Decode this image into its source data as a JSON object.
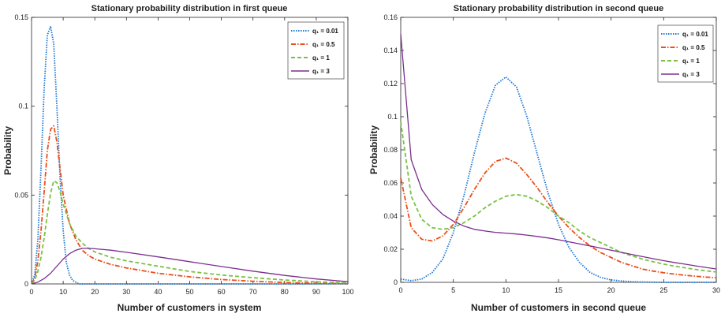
{
  "colors": {
    "s1": "#1f77d4",
    "s2": "#e8501c",
    "s3": "#7ac143",
    "s4": "#7b2e8e",
    "axis": "#262626",
    "background": "#ffffff"
  },
  "chart_data": [
    {
      "type": "line",
      "title": "Stationary probability distribution in first queue",
      "xlabel": "Number of customers in system",
      "ylabel": "Probability",
      "xlim": [
        0,
        100
      ],
      "ylim": [
        0,
        0.15
      ],
      "xticks": [
        0,
        10,
        20,
        30,
        40,
        50,
        60,
        70,
        80,
        90,
        100
      ],
      "yticks": [
        0,
        0.05,
        0.1,
        0.15
      ],
      "ytick_labels": [
        "0",
        "0.05",
        "0.1",
        "0.15"
      ],
      "grid": false,
      "legend_position": "top-right",
      "legend_labels": {
        "series_1": "q₁ = 0.01",
        "series_2": "q₁ = 0.5",
        "series_3": "q₁ = 1",
        "series_4": "q₁ = 3"
      },
      "series": [
        {
          "name": "q1 = 0.01",
          "color": "#1f77d4",
          "dash": "dotted",
          "x": [
            0,
            1,
            2,
            3,
            4,
            5,
            6,
            7,
            8,
            9,
            10,
            11,
            12,
            13,
            14,
            15,
            20,
            100
          ],
          "y": [
            0,
            0.005,
            0.025,
            0.065,
            0.11,
            0.14,
            0.145,
            0.135,
            0.1,
            0.06,
            0.03,
            0.012,
            0.005,
            0.002,
            0.001,
            0,
            0,
            0
          ]
        },
        {
          "name": "q1 = 0.5",
          "color": "#e8501c",
          "dash": "dashdot",
          "x": [
            0,
            1,
            2,
            3,
            4,
            5,
            6,
            7,
            8,
            9,
            10,
            12,
            14,
            16,
            18,
            20,
            25,
            30,
            40,
            50,
            60,
            70,
            80,
            90,
            100
          ],
          "y": [
            0,
            0.003,
            0.013,
            0.03,
            0.052,
            0.075,
            0.087,
            0.089,
            0.08,
            0.065,
            0.05,
            0.034,
            0.025,
            0.019,
            0.016,
            0.014,
            0.011,
            0.009,
            0.006,
            0.004,
            0.0025,
            0.0015,
            0.0008,
            0.0004,
            0.0002
          ]
        },
        {
          "name": "q1 = 1",
          "color": "#7ac143",
          "dash": "dashed",
          "x": [
            0,
            1,
            2,
            3,
            4,
            5,
            6,
            7,
            8,
            9,
            10,
            12,
            14,
            16,
            18,
            20,
            25,
            30,
            40,
            50,
            60,
            70,
            80,
            90,
            100
          ],
          "y": [
            0,
            0.002,
            0.007,
            0.015,
            0.026,
            0.039,
            0.051,
            0.058,
            0.057,
            0.052,
            0.045,
            0.034,
            0.027,
            0.023,
            0.02,
            0.018,
            0.015,
            0.013,
            0.01,
            0.007,
            0.005,
            0.0035,
            0.0022,
            0.0012,
            0.0006
          ]
        },
        {
          "name": "q1 = 3",
          "color": "#7b2e8e",
          "dash": "solid",
          "x": [
            0,
            2,
            4,
            6,
            8,
            10,
            12,
            14,
            16,
            18,
            20,
            25,
            30,
            40,
            50,
            60,
            70,
            80,
            90,
            100
          ],
          "y": [
            0,
            0.001,
            0.003,
            0.006,
            0.01,
            0.014,
            0.017,
            0.019,
            0.02,
            0.02,
            0.0198,
            0.019,
            0.0178,
            0.0152,
            0.0125,
            0.0098,
            0.0072,
            0.0048,
            0.0028,
            0.0013
          ]
        }
      ]
    },
    {
      "type": "line",
      "title": "Stationary probability distribution in second queue",
      "xlabel": "Number of customers in second queue",
      "ylabel": "Probability",
      "xlim": [
        0,
        30
      ],
      "ylim": [
        0,
        0.16
      ],
      "xticks": [
        0,
        5,
        10,
        15,
        20,
        25,
        30
      ],
      "yticks": [
        0,
        0.02,
        0.04,
        0.06,
        0.08,
        0.1,
        0.12,
        0.14,
        0.16
      ],
      "ytick_labels": [
        "0",
        "0.02",
        "0.04",
        "0.06",
        "0.08",
        "0.1",
        "0.12",
        "0.14",
        "0.16"
      ],
      "grid": false,
      "legend_position": "top-right",
      "legend_labels": {
        "series_1": "q₁ = 0.01",
        "series_2": "q₁ = 0.5",
        "series_3": "q₁ = 1",
        "series_4": "q₁ = 3"
      },
      "series": [
        {
          "name": "q1 = 0.01",
          "color": "#1f77d4",
          "dash": "dotted",
          "x": [
            0,
            1,
            2,
            3,
            4,
            5,
            6,
            7,
            8,
            9,
            10,
            11,
            12,
            13,
            14,
            15,
            16,
            17,
            18,
            19,
            20,
            21,
            22,
            23,
            24,
            25,
            26,
            27,
            28,
            29,
            30
          ],
          "y": [
            0.002,
            0.001,
            0.002,
            0.006,
            0.014,
            0.03,
            0.052,
            0.078,
            0.102,
            0.119,
            0.124,
            0.118,
            0.1,
            0.077,
            0.054,
            0.035,
            0.021,
            0.012,
            0.006,
            0.003,
            0.0015,
            0.0008,
            0.0004,
            0.0002,
            0.0001,
            0,
            0,
            0,
            0,
            0,
            0
          ]
        },
        {
          "name": "q1 = 0.5",
          "color": "#e8501c",
          "dash": "dashdot",
          "x": [
            0,
            1,
            2,
            3,
            4,
            5,
            6,
            7,
            8,
            9,
            10,
            11,
            12,
            13,
            14,
            15,
            16,
            17,
            18,
            19,
            20,
            21,
            22,
            23,
            24,
            25,
            26,
            27,
            28,
            29,
            30
          ],
          "y": [
            0.063,
            0.033,
            0.026,
            0.025,
            0.028,
            0.035,
            0.045,
            0.056,
            0.066,
            0.073,
            0.075,
            0.072,
            0.065,
            0.057,
            0.048,
            0.04,
            0.033,
            0.027,
            0.022,
            0.018,
            0.015,
            0.012,
            0.01,
            0.008,
            0.0068,
            0.0058,
            0.005,
            0.0043,
            0.0037,
            0.0032,
            0.0028
          ]
        },
        {
          "name": "q1 = 1",
          "color": "#7ac143",
          "dash": "dashed",
          "x": [
            0,
            1,
            2,
            3,
            4,
            5,
            6,
            7,
            8,
            9,
            10,
            11,
            12,
            13,
            14,
            15,
            16,
            17,
            18,
            19,
            20,
            21,
            22,
            23,
            24,
            25,
            26,
            27,
            28,
            29,
            30
          ],
          "y": [
            0.097,
            0.052,
            0.038,
            0.033,
            0.032,
            0.033,
            0.036,
            0.04,
            0.045,
            0.049,
            0.052,
            0.053,
            0.052,
            0.049,
            0.045,
            0.04,
            0.036,
            0.031,
            0.027,
            0.024,
            0.021,
            0.018,
            0.016,
            0.014,
            0.0125,
            0.011,
            0.0098,
            0.0088,
            0.0078,
            0.007,
            0.0063
          ]
        },
        {
          "name": "q1 = 3",
          "color": "#7b2e8e",
          "dash": "solid",
          "x": [
            0,
            1,
            2,
            3,
            4,
            5,
            6,
            7,
            8,
            9,
            10,
            11,
            12,
            13,
            14,
            15,
            16,
            17,
            18,
            19,
            20,
            21,
            22,
            23,
            24,
            25,
            26,
            27,
            28,
            29,
            30
          ],
          "y": [
            0.15,
            0.074,
            0.056,
            0.047,
            0.041,
            0.037,
            0.034,
            0.032,
            0.031,
            0.0302,
            0.0297,
            0.0292,
            0.0285,
            0.0277,
            0.0268,
            0.0257,
            0.0245,
            0.0232,
            0.022,
            0.0207,
            0.0194,
            0.0181,
            0.0168,
            0.0155,
            0.0143,
            0.0131,
            0.012,
            0.011,
            0.01,
            0.009,
            0.0081
          ]
        }
      ]
    }
  ]
}
